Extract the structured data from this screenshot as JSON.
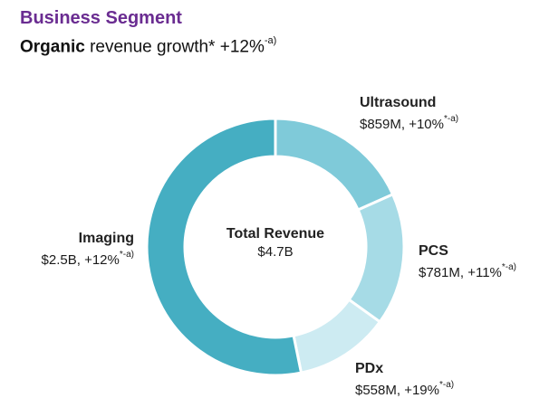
{
  "header": {
    "title": "Business Segment",
    "subtitle_bold": "Organic",
    "subtitle_rest": " revenue growth* +12%",
    "subtitle_sup": "-a)"
  },
  "chart_data": {
    "type": "pie",
    "style": "donut",
    "center": {
      "label": "Total Revenue",
      "value": "$4.7B"
    },
    "slices": [
      {
        "name": "Ultrasound",
        "value": 859,
        "unit": "$M",
        "value_text": "$859M, +10%",
        "sup": "*-a)",
        "color": "#7fcad9"
      },
      {
        "name": "PCS",
        "value": 781,
        "unit": "$M",
        "value_text": "$781M, +11%",
        "sup": "*-a)",
        "color": "#a6dbe6"
      },
      {
        "name": "PDx",
        "value": 558,
        "unit": "$M",
        "value_text": "$558M, +19%",
        "sup": "*-a)",
        "color": "#cdebf2"
      },
      {
        "name": "Imaging",
        "value": 2500,
        "unit": "$M",
        "value_text": "$2.5B, +12%",
        "sup": "*-a)",
        "color": "#45aec2"
      }
    ]
  }
}
